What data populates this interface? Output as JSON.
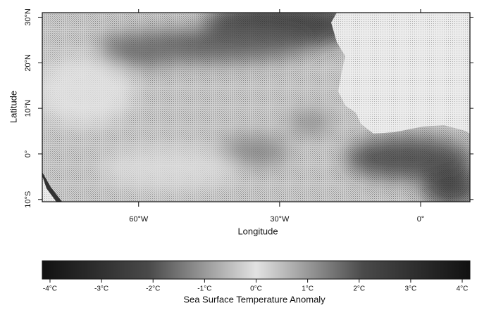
{
  "chart_data": {
    "type": "map",
    "xlabel": "Longitude",
    "ylabel": "Latitude",
    "xlim": [
      -80.5,
      10.5
    ],
    "xticks": [
      {
        "value": -60,
        "label": "60°W"
      },
      {
        "value": -30,
        "label": "30°W"
      },
      {
        "value": 0,
        "label": "0°"
      }
    ],
    "ylim": [
      -10.5,
      31
    ],
    "yticks": [
      {
        "value": 30,
        "label": "30°N"
      },
      {
        "value": 20,
        "label": "20°N"
      },
      {
        "value": 10,
        "label": "10°N"
      },
      {
        "value": 0,
        "label": "0°"
      },
      {
        "value": -10,
        "label": "10°S"
      }
    ],
    "colorbar": {
      "label": "Sea Surface Temperature Anomaly",
      "lim": [
        -4.15,
        4.15
      ],
      "ticks": [
        {
          "value": -4,
          "label": "-4°C"
        },
        {
          "value": -3,
          "label": "-3°C"
        },
        {
          "value": -2,
          "label": "-2°C"
        },
        {
          "value": -1,
          "label": "-1°C"
        },
        {
          "value": 0,
          "label": "0°C"
        },
        {
          "value": 1,
          "label": "1°C"
        },
        {
          "value": 2,
          "label": "2°C"
        },
        {
          "value": 3,
          "label": "3°C"
        },
        {
          "value": 4,
          "label": "4°C"
        }
      ]
    }
  }
}
